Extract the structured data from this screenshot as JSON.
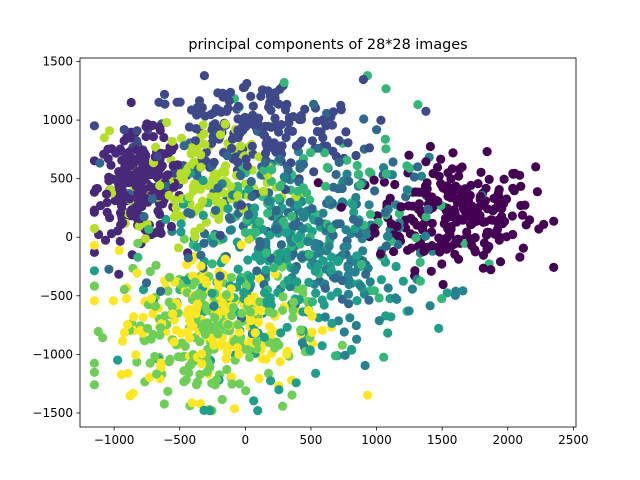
{
  "chart_data": {
    "type": "scatter",
    "title": "principal components of 28*28 images",
    "xlabel": "",
    "ylabel": "",
    "xlim": [
      -1260,
      2520
    ],
    "ylim": [
      -1620,
      1530
    ],
    "xticks": [
      -1000,
      -500,
      0,
      500,
      1000,
      1500,
      2000,
      2500
    ],
    "yticks": [
      -1500,
      -1000,
      -500,
      0,
      500,
      1000,
      1500
    ],
    "xtick_labels": [
      "−1000",
      "−500",
      "0",
      "500",
      "1000",
      "1500",
      "2000",
      "2500"
    ],
    "ytick_labels": [
      "−1500",
      "−1000",
      "−500",
      "0",
      "500",
      "1000",
      "1500"
    ],
    "grid": false,
    "legend": "none",
    "colormap": "viridis",
    "color_values": [
      0,
      1,
      2,
      3,
      4,
      5,
      6,
      7,
      8,
      9
    ],
    "palette": [
      "#440154",
      "#482878",
      "#3e4989",
      "#31688e",
      "#26828e",
      "#1f9e89",
      "#35b779",
      "#6ece58",
      "#b5de2b",
      "#fde725"
    ],
    "clusters": [
      {
        "class": 0,
        "center": [
          1600,
          200
        ],
        "spread": [
          300,
          230
        ],
        "count": 260
      },
      {
        "class": 1,
        "center": [
          -800,
          430
        ],
        "spread": [
          160,
          220
        ],
        "count": 240
      },
      {
        "class": 2,
        "center": [
          50,
          900
        ],
        "spread": [
          420,
          220
        ],
        "count": 200
      },
      {
        "class": 3,
        "center": [
          200,
          200
        ],
        "spread": [
          500,
          400
        ],
        "count": 160
      },
      {
        "class": 4,
        "center": [
          700,
          -100
        ],
        "spread": [
          420,
          380
        ],
        "count": 140
      },
      {
        "class": 5,
        "center": [
          300,
          -350
        ],
        "spread": [
          450,
          400
        ],
        "count": 170
      },
      {
        "class": 6,
        "center": [
          500,
          100
        ],
        "spread": [
          500,
          450
        ],
        "count": 130
      },
      {
        "class": 7,
        "center": [
          -300,
          -800
        ],
        "spread": [
          350,
          300
        ],
        "count": 200
      },
      {
        "class": 8,
        "center": [
          -350,
          450
        ],
        "spread": [
          280,
          250
        ],
        "count": 150
      },
      {
        "class": 9,
        "center": [
          -200,
          -700
        ],
        "spread": [
          400,
          300
        ],
        "count": 180
      }
    ]
  }
}
